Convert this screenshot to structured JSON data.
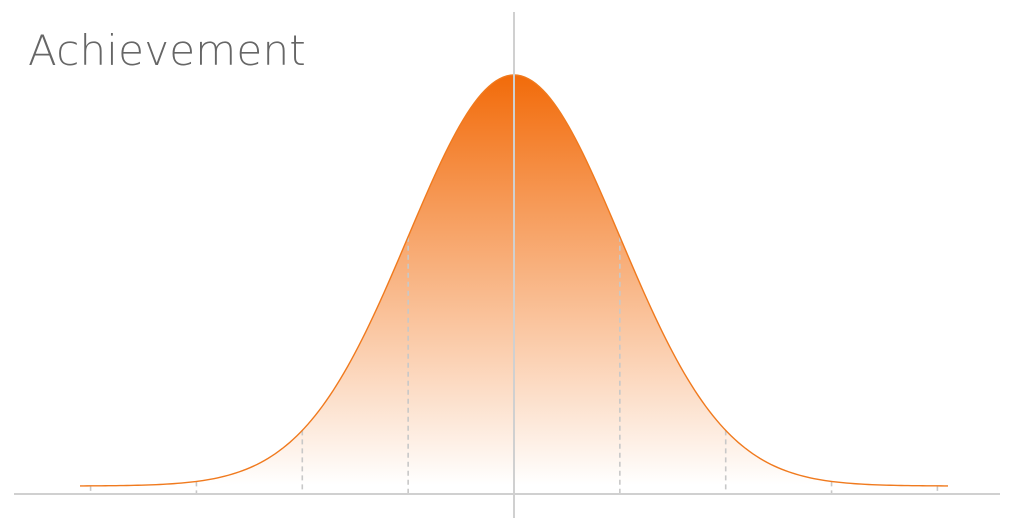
{
  "chart_data": {
    "type": "area",
    "title": "Achievement",
    "xlabel": "",
    "ylabel": "",
    "distribution": "normal",
    "mean": 0,
    "sd": 1,
    "xlim": [
      -4.1,
      4.1
    ],
    "ylim": [
      0,
      0.4
    ],
    "sd_markers": [
      -4,
      -3,
      -2,
      -1,
      1,
      2,
      3,
      4
    ],
    "center_line": 0,
    "grid": false,
    "legend": "none",
    "colors": {
      "fill_top": "#f26b0a",
      "fill_bottom": "#ffffff",
      "curve": "#f07a1e",
      "axis": "#d0d0d0",
      "markers": "#c8c8c8",
      "title": "#666666"
    }
  }
}
